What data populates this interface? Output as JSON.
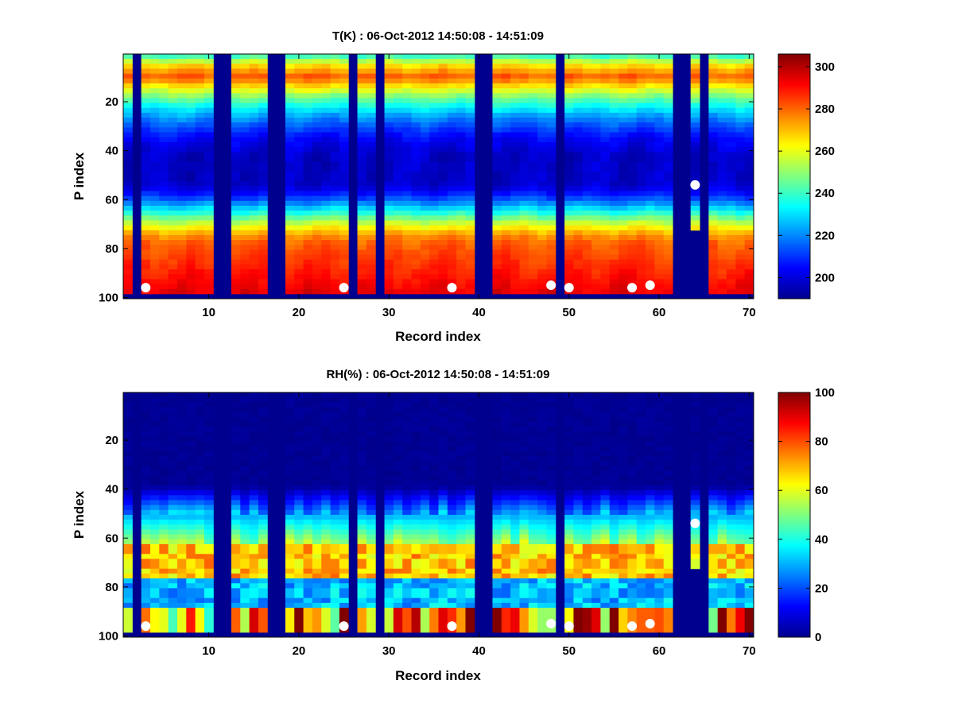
{
  "chart_data": [
    {
      "type": "heatmap",
      "title": "T(K) : 06-Oct-2012 14:50:08 - 14:51:09",
      "xlabel": "Record index",
      "ylabel": "P index",
      "xlim": [
        0.5,
        70.5
      ],
      "ylim": [
        0.5,
        100.5
      ],
      "xticks": [
        10,
        20,
        30,
        40,
        50,
        60,
        70
      ],
      "yticks": [
        20,
        40,
        60,
        80,
        100
      ],
      "colorbar": {
        "range": [
          190,
          306
        ],
        "ticks": [
          200,
          220,
          240,
          260,
          280,
          300
        ]
      },
      "missing_records": [
        2,
        11,
        12,
        17,
        18,
        26,
        29,
        40,
        41,
        49,
        62,
        63,
        65
      ],
      "partial_records": [
        {
          "record": 64,
          "valid_p_max": 72
        }
      ],
      "bottom_flag_p": 98,
      "profile_shape": "warm (~265-285 K) near P index 5-15, cold minimum (~200 K) near P index 40-55, warm again (~285-295 K) near P index 85-98",
      "markers": [
        [
          3,
          96
        ],
        [
          25,
          96
        ],
        [
          37,
          96
        ],
        [
          48,
          95
        ],
        [
          50,
          96
        ],
        [
          57,
          96
        ],
        [
          59,
          95
        ],
        [
          64,
          54
        ]
      ]
    },
    {
      "type": "heatmap",
      "title": "RH(%) : 06-Oct-2012 14:50:08 - 14:51:09",
      "xlabel": "Record index",
      "ylabel": "P index",
      "xlim": [
        0.5,
        70.5
      ],
      "ylim": [
        0.5,
        100.5
      ],
      "xticks": [
        10,
        20,
        30,
        40,
        50,
        60,
        70
      ],
      "yticks": [
        20,
        40,
        60,
        80,
        100
      ],
      "colorbar": {
        "range": [
          0,
          100
        ],
        "ticks": [
          0,
          20,
          40,
          60,
          80,
          100
        ]
      },
      "missing_records": [
        2,
        11,
        12,
        17,
        18,
        26,
        29,
        40,
        41,
        49,
        62,
        63,
        65
      ],
      "partial_records": [
        {
          "record": 64,
          "valid_p_max": 72
        }
      ],
      "bottom_flag_p": 98,
      "profile_shape": "dry (~0-5%) from P index 1-38, moist bands ~40-70% around P index 55-75, saturated ~80-100% near P index 90-97",
      "markers": [
        [
          3,
          96
        ],
        [
          25,
          96
        ],
        [
          37,
          96
        ],
        [
          48,
          95
        ],
        [
          50,
          96
        ],
        [
          57,
          96
        ],
        [
          59,
          95
        ],
        [
          64,
          54
        ]
      ]
    }
  ]
}
